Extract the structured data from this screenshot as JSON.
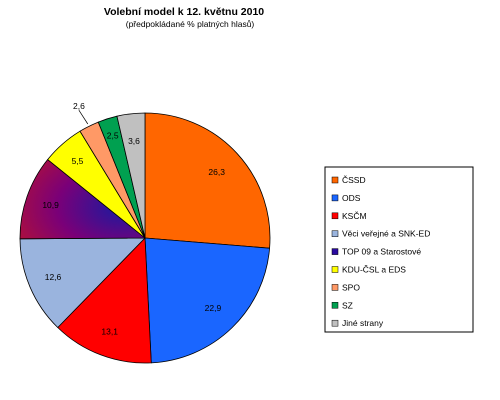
{
  "chart_data": {
    "type": "pie",
    "title": "Volební model k 12. květnu 2010",
    "subtitle": "(předpokládané % platných hlasů)",
    "slices": [
      {
        "name": "ČSSD",
        "value": 26.3,
        "label": "26,3",
        "color": "#ff6600"
      },
      {
        "name": "ODS",
        "value": 22.9,
        "label": "22,9",
        "color": "#1a66ff"
      },
      {
        "name": "KSČM",
        "value": 13.1,
        "label": "13,1",
        "color": "#ff0000"
      },
      {
        "name": "Věci veřejné a SNK-ED",
        "value": 12.6,
        "label": "12,6",
        "color": "#9ab4de"
      },
      {
        "name": "TOP 09 a Starostové",
        "value": 10.9,
        "label": "10,9",
        "color": "#6a0080"
      },
      {
        "name": "KDU-ČSL a EDS",
        "value": 5.5,
        "label": "5,5",
        "color": "#ffff00"
      },
      {
        "name": "SPO",
        "value": 2.6,
        "label": "2,6",
        "color": "#ff9966"
      },
      {
        "name": "SZ",
        "value": 2.5,
        "label": "2,5",
        "color": "#00a050"
      },
      {
        "name": "Jiné strany",
        "value": 3.6,
        "label": "3,6",
        "color": "#c0c0c0"
      }
    ],
    "legend_position": "right"
  }
}
